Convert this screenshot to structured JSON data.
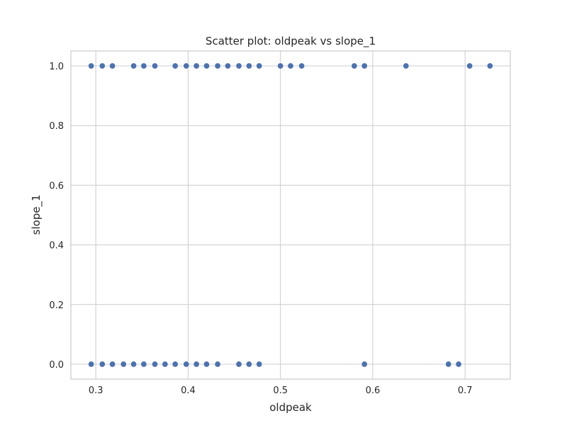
{
  "chart_data": {
    "type": "scatter",
    "title": "Scatter plot: oldpeak vs slope_1",
    "xlabel": "oldpeak",
    "ylabel": "slope_1",
    "xlim": [
      0.273,
      0.749
    ],
    "ylim": [
      -0.05,
      1.05
    ],
    "x_ticks": [
      0.3,
      0.4,
      0.5,
      0.6,
      0.7
    ],
    "x_tick_labels": [
      "0.3",
      "0.4",
      "0.5",
      "0.6",
      "0.7"
    ],
    "y_ticks": [
      0.0,
      0.2,
      0.4,
      0.6,
      0.8,
      1.0
    ],
    "y_tick_labels": [
      "0.0",
      "0.2",
      "0.4",
      "0.6",
      "0.8",
      "1.0"
    ],
    "grid": true,
    "marker_color": "#4c72b0",
    "series": [
      {
        "points": [
          {
            "x": 0.295,
            "y": 1
          },
          {
            "x": 0.307,
            "y": 1
          },
          {
            "x": 0.318,
            "y": 1
          },
          {
            "x": 0.341,
            "y": 1
          },
          {
            "x": 0.352,
            "y": 1
          },
          {
            "x": 0.364,
            "y": 1
          },
          {
            "x": 0.386,
            "y": 1
          },
          {
            "x": 0.398,
            "y": 1
          },
          {
            "x": 0.409,
            "y": 1
          },
          {
            "x": 0.42,
            "y": 1
          },
          {
            "x": 0.432,
            "y": 1
          },
          {
            "x": 0.443,
            "y": 1
          },
          {
            "x": 0.455,
            "y": 1
          },
          {
            "x": 0.466,
            "y": 1
          },
          {
            "x": 0.477,
            "y": 1
          },
          {
            "x": 0.5,
            "y": 1
          },
          {
            "x": 0.511,
            "y": 1
          },
          {
            "x": 0.523,
            "y": 1
          },
          {
            "x": 0.58,
            "y": 1
          },
          {
            "x": 0.591,
            "y": 1
          },
          {
            "x": 0.636,
            "y": 1
          },
          {
            "x": 0.705,
            "y": 1
          },
          {
            "x": 0.727,
            "y": 1
          },
          {
            "x": 0.295,
            "y": 0
          },
          {
            "x": 0.307,
            "y": 0
          },
          {
            "x": 0.318,
            "y": 0
          },
          {
            "x": 0.33,
            "y": 0
          },
          {
            "x": 0.341,
            "y": 0
          },
          {
            "x": 0.352,
            "y": 0
          },
          {
            "x": 0.364,
            "y": 0
          },
          {
            "x": 0.375,
            "y": 0
          },
          {
            "x": 0.386,
            "y": 0
          },
          {
            "x": 0.398,
            "y": 0
          },
          {
            "x": 0.409,
            "y": 0
          },
          {
            "x": 0.42,
            "y": 0
          },
          {
            "x": 0.432,
            "y": 0
          },
          {
            "x": 0.455,
            "y": 0
          },
          {
            "x": 0.466,
            "y": 0
          },
          {
            "x": 0.477,
            "y": 0
          },
          {
            "x": 0.591,
            "y": 0
          },
          {
            "x": 0.682,
            "y": 0
          },
          {
            "x": 0.693,
            "y": 0
          }
        ]
      }
    ]
  }
}
